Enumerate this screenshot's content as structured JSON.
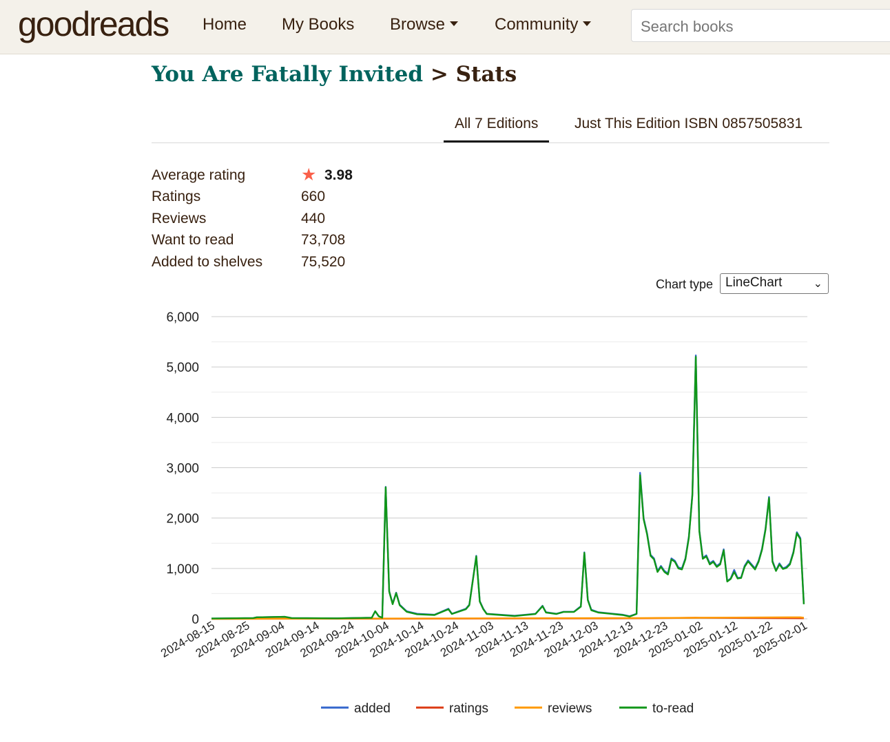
{
  "header": {
    "logo_good": "good",
    "logo_reads": "reads",
    "nav": [
      "Home",
      "My Books",
      "Browse",
      "Community"
    ],
    "search_placeholder": "Search books"
  },
  "page": {
    "book_title": "You Are Fatally Invited",
    "separator": ">",
    "section": "Stats"
  },
  "tabs": [
    "All 7 Editions",
    "Just This Edition ISBN 0857505831"
  ],
  "stats": [
    {
      "label": "Average rating",
      "value": "3.98"
    },
    {
      "label": "Ratings",
      "value": "660"
    },
    {
      "label": "Reviews",
      "value": "440"
    },
    {
      "label": "Want to read",
      "value": "73,708"
    },
    {
      "label": "Added to shelves",
      "value": "75,520"
    }
  ],
  "chart_type_label": "Chart type",
  "chart_type_value": "LineChart",
  "colors": {
    "added": "#3366cc",
    "ratings": "#dc3912",
    "reviews": "#ff9900",
    "to-read": "#109618",
    "accent": "#00635d",
    "brand": "#382110"
  },
  "chart_data": {
    "type": "line",
    "title": "",
    "xlabel": "",
    "ylabel": "",
    "ylim": [
      0,
      6000
    ],
    "yticks": [
      "0",
      "1,000",
      "2,000",
      "3,000",
      "4,000",
      "5,000",
      "6,000"
    ],
    "x_start": "2024-08-15",
    "x_end": "2025-02-02",
    "xticks": [
      "2024-08-15",
      "2024-08-25",
      "2024-09-04",
      "2024-09-14",
      "2024-09-24",
      "2024-10-04",
      "2024-10-14",
      "2024-10-24",
      "2024-11-03",
      "2024-11-13",
      "2024-11-23",
      "2024-12-03",
      "2024-12-13",
      "2024-12-23",
      "2025-01-02",
      "2025-01-12",
      "2025-01-22",
      "2025-02-01"
    ],
    "legend_position": "bottom",
    "series": [
      {
        "name": "added",
        "points": [
          [
            "2024-08-15",
            5
          ],
          [
            "2024-08-27",
            15
          ],
          [
            "2024-08-28",
            30
          ],
          [
            "2024-09-05",
            40
          ],
          [
            "2024-09-07",
            15
          ],
          [
            "2024-09-20",
            10
          ],
          [
            "2024-09-30",
            20
          ],
          [
            "2024-10-01",
            150
          ],
          [
            "2024-10-02",
            50
          ],
          [
            "2024-10-03",
            20
          ],
          [
            "2024-10-04",
            2620
          ],
          [
            "2024-10-05",
            550
          ],
          [
            "2024-10-06",
            300
          ],
          [
            "2024-10-07",
            520
          ],
          [
            "2024-10-08",
            280
          ],
          [
            "2024-10-10",
            150
          ],
          [
            "2024-10-13",
            100
          ],
          [
            "2024-10-18",
            80
          ],
          [
            "2024-10-22",
            200
          ],
          [
            "2024-10-23",
            100
          ],
          [
            "2024-10-27",
            200
          ],
          [
            "2024-10-28",
            280
          ],
          [
            "2024-10-30",
            1250
          ],
          [
            "2024-10-31",
            350
          ],
          [
            "2024-11-01",
            200
          ],
          [
            "2024-11-02",
            100
          ],
          [
            "2024-11-10",
            60
          ],
          [
            "2024-11-16",
            100
          ],
          [
            "2024-11-18",
            260
          ],
          [
            "2024-11-19",
            130
          ],
          [
            "2024-11-22",
            100
          ],
          [
            "2024-11-24",
            140
          ],
          [
            "2024-11-27",
            140
          ],
          [
            "2024-11-29",
            250
          ],
          [
            "2024-11-30",
            1320
          ],
          [
            "2024-12-01",
            380
          ],
          [
            "2024-12-02",
            180
          ],
          [
            "2024-12-04",
            130
          ],
          [
            "2024-12-11",
            80
          ],
          [
            "2024-12-13",
            50
          ],
          [
            "2024-12-15",
            100
          ],
          [
            "2024-12-16",
            2900
          ],
          [
            "2024-12-17",
            2000
          ],
          [
            "2024-12-18",
            1700
          ],
          [
            "2024-12-19",
            1270
          ],
          [
            "2024-12-20",
            1200
          ],
          [
            "2024-12-21",
            950
          ],
          [
            "2024-12-22",
            1050
          ],
          [
            "2024-12-23",
            950
          ],
          [
            "2024-12-24",
            900
          ],
          [
            "2024-12-25",
            1200
          ],
          [
            "2024-12-26",
            1150
          ],
          [
            "2024-12-27",
            1020
          ],
          [
            "2024-12-28",
            1000
          ],
          [
            "2024-12-29",
            1200
          ],
          [
            "2024-12-30",
            1630
          ],
          [
            "2024-12-31",
            2470
          ],
          [
            "2025-01-01",
            5230
          ],
          [
            "2025-01-02",
            1760
          ],
          [
            "2025-01-03",
            1210
          ],
          [
            "2025-01-04",
            1260
          ],
          [
            "2025-01-05",
            1100
          ],
          [
            "2025-01-06",
            1150
          ],
          [
            "2025-01-07",
            1050
          ],
          [
            "2025-01-08",
            1100
          ],
          [
            "2025-01-09",
            1380
          ],
          [
            "2025-01-10",
            750
          ],
          [
            "2025-01-11",
            800
          ],
          [
            "2025-01-12",
            970
          ],
          [
            "2025-01-13",
            810
          ],
          [
            "2025-01-14",
            820
          ],
          [
            "2025-01-15",
            1050
          ],
          [
            "2025-01-16",
            1160
          ],
          [
            "2025-01-17",
            1080
          ],
          [
            "2025-01-18",
            1000
          ],
          [
            "2025-01-19",
            1150
          ],
          [
            "2025-01-20",
            1390
          ],
          [
            "2025-01-21",
            1790
          ],
          [
            "2025-01-22",
            2420
          ],
          [
            "2025-01-23",
            1150
          ],
          [
            "2025-01-24",
            960
          ],
          [
            "2025-01-25",
            1100
          ],
          [
            "2025-01-26",
            1000
          ],
          [
            "2025-01-27",
            1030
          ],
          [
            "2025-01-28",
            1100
          ],
          [
            "2025-01-29",
            1330
          ],
          [
            "2025-01-30",
            1720
          ],
          [
            "2025-01-31",
            1600
          ],
          [
            "2025-02-01",
            300
          ]
        ]
      },
      {
        "name": "ratings",
        "points": [
          [
            "2024-08-15",
            0
          ],
          [
            "2024-10-04",
            2
          ],
          [
            "2024-12-16",
            10
          ],
          [
            "2025-01-01",
            20
          ],
          [
            "2025-02-01",
            10
          ]
        ]
      },
      {
        "name": "reviews",
        "points": [
          [
            "2024-08-15",
            0
          ],
          [
            "2024-10-04",
            5
          ],
          [
            "2024-12-16",
            15
          ],
          [
            "2025-01-01",
            20
          ],
          [
            "2025-01-31",
            30
          ],
          [
            "2025-02-01",
            20
          ]
        ]
      },
      {
        "name": "to-read",
        "points": [
          [
            "2024-08-15",
            5
          ],
          [
            "2024-08-27",
            15
          ],
          [
            "2024-08-28",
            30
          ],
          [
            "2024-09-05",
            40
          ],
          [
            "2024-09-07",
            15
          ],
          [
            "2024-09-20",
            10
          ],
          [
            "2024-09-30",
            20
          ],
          [
            "2024-10-01",
            150
          ],
          [
            "2024-10-02",
            50
          ],
          [
            "2024-10-03",
            20
          ],
          [
            "2024-10-04",
            2610
          ],
          [
            "2024-10-05",
            540
          ],
          [
            "2024-10-06",
            290
          ],
          [
            "2024-10-07",
            510
          ],
          [
            "2024-10-08",
            270
          ],
          [
            "2024-10-10",
            140
          ],
          [
            "2024-10-13",
            90
          ],
          [
            "2024-10-18",
            75
          ],
          [
            "2024-10-22",
            190
          ],
          [
            "2024-10-23",
            95
          ],
          [
            "2024-10-27",
            190
          ],
          [
            "2024-10-28",
            270
          ],
          [
            "2024-10-30",
            1240
          ],
          [
            "2024-10-31",
            340
          ],
          [
            "2024-11-01",
            190
          ],
          [
            "2024-11-02",
            95
          ],
          [
            "2024-11-10",
            55
          ],
          [
            "2024-11-16",
            95
          ],
          [
            "2024-11-18",
            250
          ],
          [
            "2024-11-19",
            125
          ],
          [
            "2024-11-22",
            95
          ],
          [
            "2024-11-24",
            135
          ],
          [
            "2024-11-27",
            135
          ],
          [
            "2024-11-29",
            240
          ],
          [
            "2024-11-30",
            1310
          ],
          [
            "2024-12-01",
            370
          ],
          [
            "2024-12-02",
            170
          ],
          [
            "2024-12-04",
            125
          ],
          [
            "2024-12-11",
            75
          ],
          [
            "2024-12-13",
            45
          ],
          [
            "2024-12-15",
            95
          ],
          [
            "2024-12-16",
            2850
          ],
          [
            "2024-12-17",
            1980
          ],
          [
            "2024-12-18",
            1680
          ],
          [
            "2024-12-19",
            1250
          ],
          [
            "2024-12-20",
            1180
          ],
          [
            "2024-12-21",
            930
          ],
          [
            "2024-12-22",
            1030
          ],
          [
            "2024-12-23",
            930
          ],
          [
            "2024-12-24",
            880
          ],
          [
            "2024-12-25",
            1180
          ],
          [
            "2024-12-26",
            1130
          ],
          [
            "2024-12-27",
            1000
          ],
          [
            "2024-12-28",
            980
          ],
          [
            "2024-12-29",
            1180
          ],
          [
            "2024-12-30",
            1610
          ],
          [
            "2024-12-31",
            2450
          ],
          [
            "2025-01-01",
            5200
          ],
          [
            "2025-01-02",
            1740
          ],
          [
            "2025-01-03",
            1190
          ],
          [
            "2025-01-04",
            1240
          ],
          [
            "2025-01-05",
            1080
          ],
          [
            "2025-01-06",
            1130
          ],
          [
            "2025-01-07",
            1030
          ],
          [
            "2025-01-08",
            1080
          ],
          [
            "2025-01-09",
            1360
          ],
          [
            "2025-01-10",
            740
          ],
          [
            "2025-01-11",
            790
          ],
          [
            "2025-01-12",
            930
          ],
          [
            "2025-01-13",
            800
          ],
          [
            "2025-01-14",
            810
          ],
          [
            "2025-01-15",
            1030
          ],
          [
            "2025-01-16",
            1140
          ],
          [
            "2025-01-17",
            1060
          ],
          [
            "2025-01-18",
            980
          ],
          [
            "2025-01-19",
            1130
          ],
          [
            "2025-01-20",
            1370
          ],
          [
            "2025-01-21",
            1770
          ],
          [
            "2025-01-22",
            2400
          ],
          [
            "2025-01-23",
            1130
          ],
          [
            "2025-01-24",
            950
          ],
          [
            "2025-01-25",
            1080
          ],
          [
            "2025-01-26",
            990
          ],
          [
            "2025-01-27",
            1010
          ],
          [
            "2025-01-28",
            1080
          ],
          [
            "2025-01-29",
            1310
          ],
          [
            "2025-01-30",
            1700
          ],
          [
            "2025-01-31",
            1580
          ],
          [
            "2025-02-01",
            290
          ]
        ]
      }
    ]
  }
}
